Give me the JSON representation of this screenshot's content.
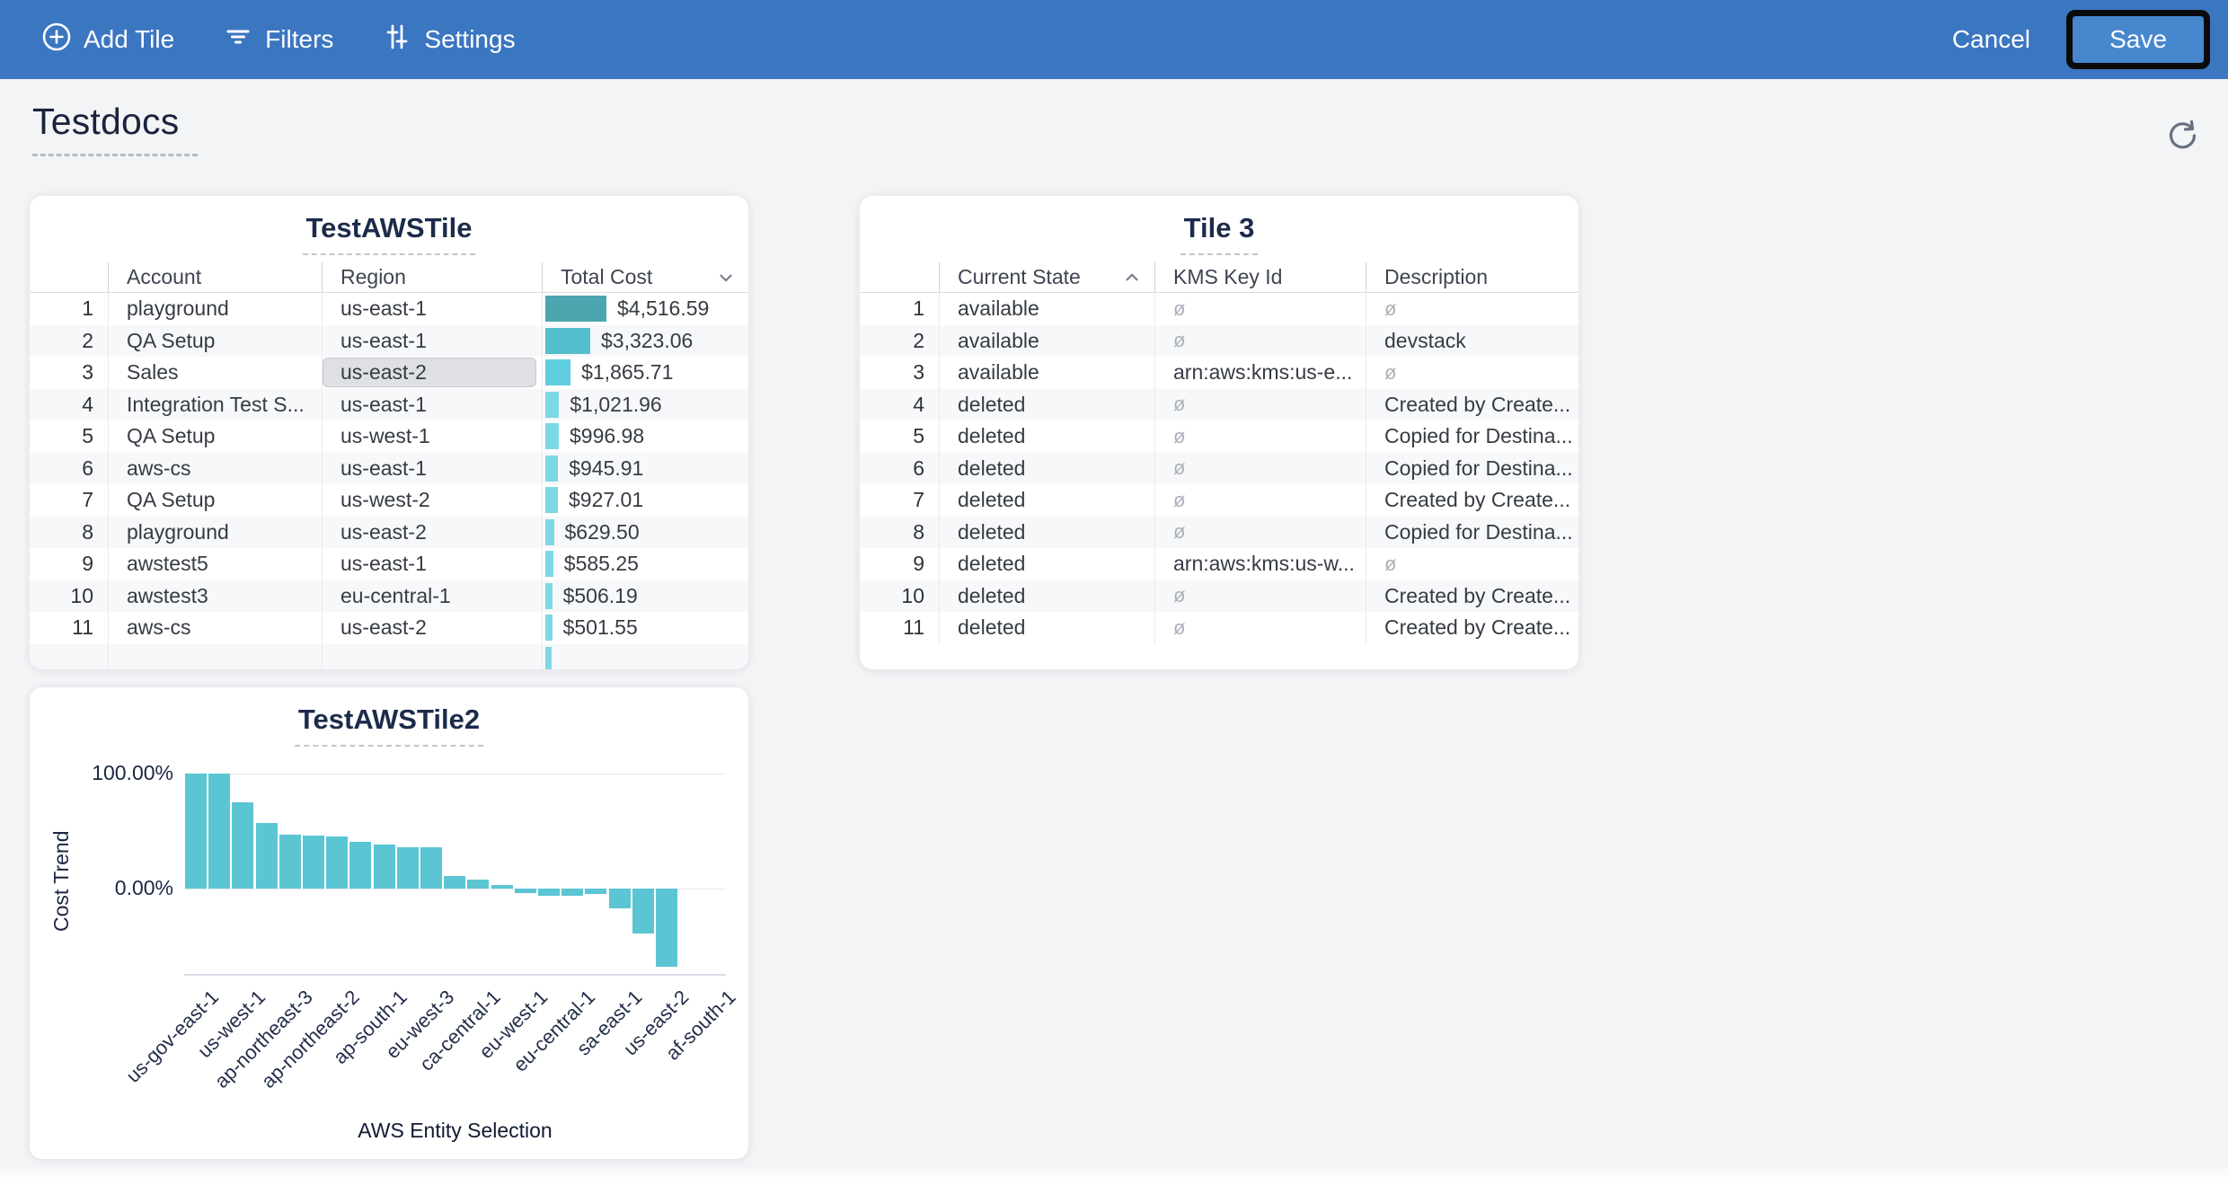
{
  "toolbar": {
    "add_tile_label": "Add Tile",
    "filters_label": "Filters",
    "settings_label": "Settings",
    "cancel_label": "Cancel",
    "save_label": "Save"
  },
  "page": {
    "title": "Testdocs"
  },
  "colors": {
    "toolbar_blue": "#3B76C1",
    "save_blue": "#4787CE",
    "save_highlight_black": "#0B0B0B",
    "page_bg": "#F3F4F6",
    "tile_bg": "#FFFFFF",
    "title_navy": "#1C2B4B",
    "chart_bar_teal": "#5BC5D3",
    "selected_cell_gray": "#DEE0E3"
  },
  "icons": {
    "add_tile": "plus-circle-icon",
    "filters": "filter-lines-icon",
    "settings": "sliders-icon",
    "refresh": "refresh-icon",
    "sort_desc": "chevron-down-icon",
    "sort_asc": "chevron-up-icon",
    "null_value": "slashed-o"
  },
  "tiles": [
    {
      "title": "TestAWSTile",
      "type": "table",
      "columns": [
        "Account",
        "Region",
        "Total Cost"
      ],
      "sort": {
        "column": "Total Cost",
        "direction": "desc"
      },
      "max_value": 4516.59,
      "clipped_next_row_bar": true,
      "rows": [
        {
          "n": "1",
          "account": "playground",
          "region": "us-east-1",
          "total_cost": "$4,516.59",
          "value": 4516.59,
          "bar_color": "#4DA5B0",
          "region_selected": false
        },
        {
          "n": "2",
          "account": "QA Setup",
          "region": "us-east-1",
          "total_cost": "$3,323.06",
          "value": 3323.06,
          "bar_color": "#55BECC",
          "region_selected": false
        },
        {
          "n": "3",
          "account": "Sales",
          "region": "us-east-2",
          "total_cost": "$1,865.71",
          "value": 1865.71,
          "bar_color": "#5FCEDE",
          "region_selected": true
        },
        {
          "n": "4",
          "account": "Integration Test S...",
          "region": "us-east-1",
          "total_cost": "$1,021.96",
          "value": 1021.96,
          "bar_color": "#7ED8E3",
          "region_selected": false
        },
        {
          "n": "5",
          "account": "QA Setup",
          "region": "us-west-1",
          "total_cost": "$996.98",
          "value": 996.98,
          "bar_color": "#7ED8E3",
          "region_selected": false
        },
        {
          "n": "6",
          "account": "aws-cs",
          "region": "us-east-1",
          "total_cost": "$945.91",
          "value": 945.91,
          "bar_color": "#7ED8E3",
          "region_selected": false
        },
        {
          "n": "7",
          "account": "QA Setup",
          "region": "us-west-2",
          "total_cost": "$927.01",
          "value": 927.01,
          "bar_color": "#7ED8E3",
          "region_selected": false
        },
        {
          "n": "8",
          "account": "playground",
          "region": "us-east-2",
          "total_cost": "$629.50",
          "value": 629.5,
          "bar_color": "#7ED8E3",
          "region_selected": false
        },
        {
          "n": "9",
          "account": "awstest5",
          "region": "us-east-1",
          "total_cost": "$585.25",
          "value": 585.25,
          "bar_color": "#7ED8E3",
          "region_selected": false
        },
        {
          "n": "10",
          "account": "awstest3",
          "region": "eu-central-1",
          "total_cost": "$506.19",
          "value": 506.19,
          "bar_color": "#7ED8E3",
          "region_selected": false
        },
        {
          "n": "11",
          "account": "aws-cs",
          "region": "us-east-2",
          "total_cost": "$501.55",
          "value": 501.55,
          "bar_color": "#7ED8E3",
          "region_selected": false
        }
      ]
    },
    {
      "title": "Tile 3",
      "type": "table",
      "columns": [
        "Current State",
        "KMS Key Id",
        "Description"
      ],
      "sort": {
        "column": "Current State",
        "direction": "asc"
      },
      "null_symbol": "ø",
      "rows": [
        {
          "n": "1",
          "current_state": "available",
          "kms_key_id": null,
          "description": null
        },
        {
          "n": "2",
          "current_state": "available",
          "kms_key_id": null,
          "description": "devstack"
        },
        {
          "n": "3",
          "current_state": "available",
          "kms_key_id": "arn:aws:kms:us-e...",
          "description": null
        },
        {
          "n": "4",
          "current_state": "deleted",
          "kms_key_id": null,
          "description": "Created by Create..."
        },
        {
          "n": "5",
          "current_state": "deleted",
          "kms_key_id": null,
          "description": "Copied for Destina..."
        },
        {
          "n": "6",
          "current_state": "deleted",
          "kms_key_id": null,
          "description": "Copied for Destina..."
        },
        {
          "n": "7",
          "current_state": "deleted",
          "kms_key_id": null,
          "description": "Created by Create..."
        },
        {
          "n": "8",
          "current_state": "deleted",
          "kms_key_id": null,
          "description": "Copied for Destina..."
        },
        {
          "n": "9",
          "current_state": "deleted",
          "kms_key_id": "arn:aws:kms:us-w...",
          "description": null
        },
        {
          "n": "10",
          "current_state": "deleted",
          "kms_key_id": null,
          "description": "Created by Create..."
        },
        {
          "n": "11",
          "current_state": "deleted",
          "kms_key_id": null,
          "description": "Created by Create..."
        }
      ]
    },
    {
      "title": "TestAWSTile2",
      "type": "chart"
    }
  ],
  "chart_data": {
    "type": "bar",
    "title": "TestAWSTile2",
    "xlabel": "AWS Entity Selection",
    "ylabel": "Cost Trend",
    "y_tick_labels": [
      "100.00%",
      "0.00%"
    ],
    "ylim": [
      -76,
      112
    ],
    "grid": true,
    "legend": "none",
    "bar_color": "#5BC5D3",
    "categories": [
      "us-gov-east-1",
      "us-west-1",
      "ap-northeast-3",
      "ap-northeast-2",
      "ap-south-1",
      "eu-west-3",
      "ca-central-1",
      "eu-west-1",
      "eu-central-1",
      "sa-east-1",
      "us-east-2",
      "af-south-1"
    ],
    "category_label_every": 2,
    "values_pct": [
      100,
      100,
      75,
      57,
      47,
      46,
      45,
      41,
      38,
      36,
      36,
      11,
      8,
      3,
      -4,
      -6,
      -6,
      -5,
      -17,
      -39,
      -68
    ]
  }
}
